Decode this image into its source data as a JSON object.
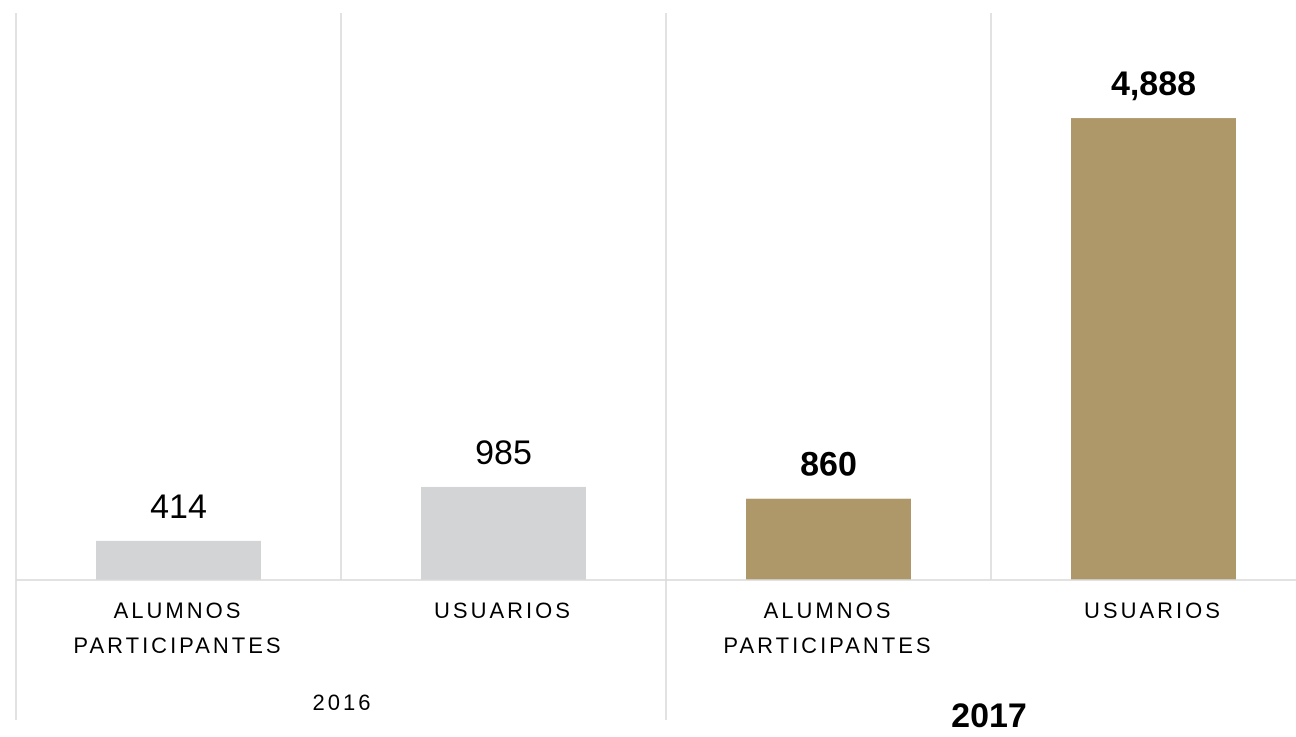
{
  "chart_data": {
    "type": "bar",
    "ylim": [
      0,
      6000
    ],
    "groups": [
      {
        "name": "2016",
        "color": "#d3d4d6",
        "bold": false,
        "categories": [
          "ALUMNOS PARTICIPANTES",
          "USUARIOS"
        ],
        "values": [
          414,
          985
        ]
      },
      {
        "name": "2017",
        "color": "#ae9869",
        "bold": true,
        "categories": [
          "ALUMNOS PARTICIPANTES",
          "USUARIOS"
        ],
        "values": [
          860,
          4888
        ],
        "value_labels": [
          "860",
          "4,888"
        ]
      }
    ]
  }
}
